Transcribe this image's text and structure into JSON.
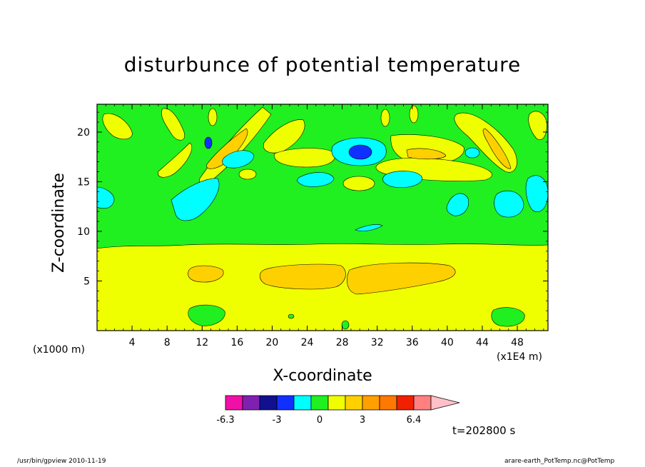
{
  "chart_data": {
    "type": "contour",
    "title": "disturbunce of potential temperature",
    "xlabel": "X-coordinate",
    "ylabel": "Z-coordinate",
    "x_unit": "(x1E4 m)",
    "z_unit": "(x1000 m)",
    "x_ticks": [
      4,
      8,
      12,
      16,
      20,
      24,
      28,
      32,
      36,
      40,
      44,
      48
    ],
    "y_ticks": [
      5,
      10,
      15,
      20
    ],
    "xlim": [
      0,
      51.5
    ],
    "ylim": [
      0,
      22.8
    ],
    "colorbar": {
      "tick_labels": [
        "-6.3",
        "-3",
        "0",
        "3",
        "6.4"
      ],
      "colors": [
        "#f010a8",
        "#8020b0",
        "#101090",
        "#1030ff",
        "#00ffff",
        "#20f020",
        "#f0ff00",
        "#ffd000",
        "#ffa000",
        "#ff7800",
        "#f02000",
        "#ff8080",
        "#ffc0c8"
      ]
    },
    "time_label": "t=202800 s"
  },
  "footer": {
    "left": "/usr/bin/gpview   2010-11-19",
    "right": "arare-earth_PotTemp.nc@PotTemp"
  }
}
